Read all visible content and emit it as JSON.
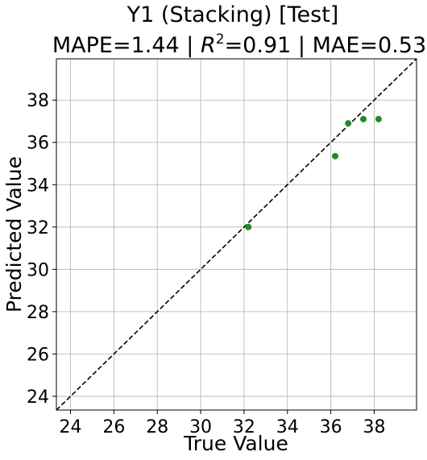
{
  "chart_data": {
    "type": "scatter",
    "title_line1": "Y1 (Stacking) [Test]",
    "metrics": {
      "mape_label": "MAPE=1.44 | ",
      "r2_symbol": "R",
      "r2_exponent": "2",
      "r2_rest": "=0.91 | MAE=0.53"
    },
    "xlabel": "True Value",
    "ylabel": "Predicted Value",
    "xlim": [
      23.35,
      39.95
    ],
    "ylim": [
      23.35,
      39.95
    ],
    "xticks": [
      24,
      26,
      28,
      30,
      32,
      34,
      36,
      38
    ],
    "yticks": [
      24,
      26,
      28,
      30,
      32,
      34,
      36,
      38
    ],
    "grid": true,
    "identity_line": true,
    "point_color": "#228b22",
    "line_color": "#000000",
    "points": [
      {
        "x": 32.2,
        "y": 32.0
      },
      {
        "x": 36.2,
        "y": 35.35
      },
      {
        "x": 36.8,
        "y": 36.9
      },
      {
        "x": 37.5,
        "y": 37.1
      },
      {
        "x": 38.2,
        "y": 37.1
      }
    ]
  }
}
